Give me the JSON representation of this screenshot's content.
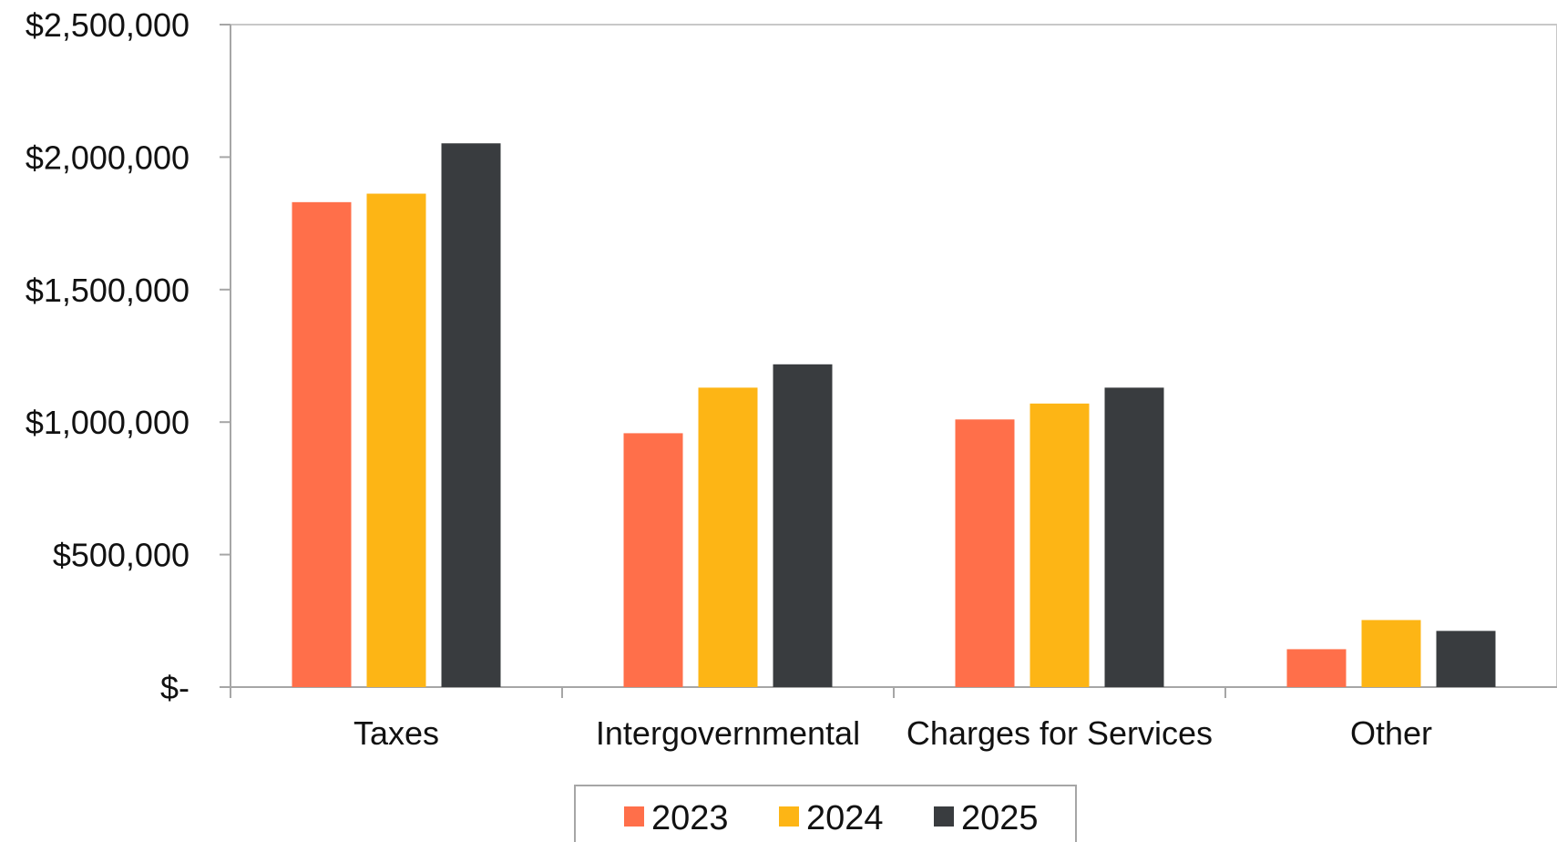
{
  "chart_data": {
    "type": "bar",
    "categories": [
      "Taxes",
      "Intergovernmental",
      "Charges for Services",
      "Other"
    ],
    "series": [
      {
        "name": "2023",
        "color": "#FF6F4A",
        "values": [
          1830000,
          958000,
          1010000,
          143000
        ]
      },
      {
        "name": "2024",
        "color": "#FDB515",
        "values": [
          1862000,
          1130000,
          1070000,
          253000
        ]
      },
      {
        "name": "2025",
        "color": "#393C3F",
        "values": [
          2052000,
          1218000,
          1130000,
          212000
        ]
      }
    ],
    "ylim": [
      0,
      2500000
    ],
    "yticks": [
      0,
      500000,
      1000000,
      1500000,
      2000000,
      2500000
    ],
    "ytick_labels": [
      "$-",
      "$500,000",
      "$1,000,000",
      "$1,500,000",
      "$2,000,000",
      "$2,500,000"
    ],
    "legend_position": "bottom",
    "grid": false,
    "axis_color": "#A6A6A6"
  }
}
